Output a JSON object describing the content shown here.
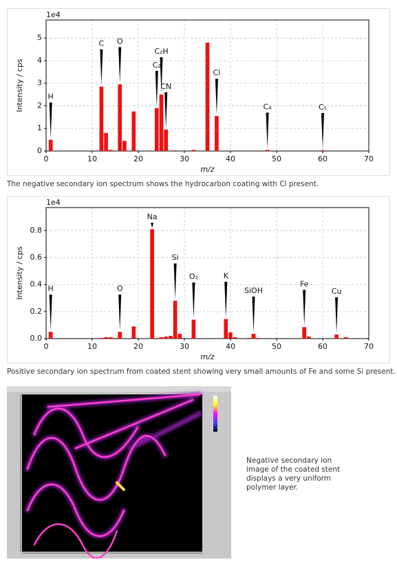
{
  "chart_data": [
    {
      "type": "bar",
      "ylabel": "Intensity / cps",
      "xlabel": "m/z",
      "y_offset_label": "1e4",
      "color": "#ee1111",
      "grid": true,
      "x": [
        1,
        12,
        13,
        14,
        16,
        17,
        19,
        24,
        25,
        26,
        28,
        32,
        35,
        37,
        48,
        60
      ],
      "values": [
        0.5,
        2.85,
        0.8,
        0.05,
        2.95,
        0.45,
        1.75,
        1.9,
        2.5,
        0.95,
        0.03,
        0.05,
        4.8,
        1.55,
        0.05,
        0.03
      ],
      "xlim": [
        0,
        70
      ],
      "xticks": [
        0,
        10,
        20,
        30,
        40,
        50,
        60,
        70
      ],
      "ylim": [
        0,
        5.8
      ],
      "yticks": [
        0,
        1,
        2,
        3,
        4,
        5
      ],
      "annotations": [
        {
          "text": "H",
          "x": 1
        },
        {
          "text": "C",
          "x": 12
        },
        {
          "text": "O",
          "x": 16
        },
        {
          "text": "C₂",
          "x": 24
        },
        {
          "text": "C₂H",
          "x": 25
        },
        {
          "text": "CN",
          "x": 26
        },
        {
          "text": "Cl",
          "x": 37
        },
        {
          "text": "C₄",
          "x": 48
        },
        {
          "text": "C₅",
          "x": 60
        }
      ]
    },
    {
      "type": "bar",
      "ylabel": "Intensity / cps",
      "xlabel": "m/z",
      "y_offset_label": "1e4",
      "color": "#ee1111",
      "grid": true,
      "x": [
        1,
        12,
        13,
        14,
        15,
        16,
        19,
        23,
        24,
        25,
        26,
        27,
        28,
        29,
        32,
        39,
        40,
        41,
        44,
        45,
        46,
        56,
        57,
        63,
        65
      ],
      "values": [
        0.05,
        0.005,
        0.01,
        0.01,
        0.005,
        0.05,
        0.09,
        0.81,
        0.005,
        0.01,
        0.015,
        0.02,
        0.28,
        0.035,
        0.14,
        0.145,
        0.045,
        0.01,
        0.005,
        0.035,
        0.005,
        0.085,
        0.015,
        0.03,
        0.01
      ],
      "xlim": [
        0,
        70
      ],
      "xticks": [
        0,
        10,
        20,
        30,
        40,
        50,
        60,
        70
      ],
      "ylim": [
        0,
        0.97
      ],
      "yticks": [
        {
          "value": 0,
          "label": "0.0"
        },
        0.2,
        0.4,
        0.6,
        0.8
      ],
      "annotations": [
        {
          "text": "H",
          "x": 1
        },
        {
          "text": "O",
          "x": 16
        },
        {
          "text": "Na",
          "x": 23
        },
        {
          "text": "Si",
          "x": 28
        },
        {
          "text": "O₂",
          "x": 32
        },
        {
          "text": "K",
          "x": 39
        },
        {
          "text": "SiOH",
          "x": 45
        },
        {
          "text": "Fe",
          "x": 56
        },
        {
          "text": "Cu",
          "x": 63
        }
      ]
    }
  ],
  "captions": [
    "The negative secondary ion spectrum shows the hydrocarbon coating with Cl present.",
    "Positive secondary ion spectrum from coated stent showing very small amounts of Fe and some Si present.",
    "Negative secondary ion image of the coated stent displays a very uniform polymer layer."
  ]
}
